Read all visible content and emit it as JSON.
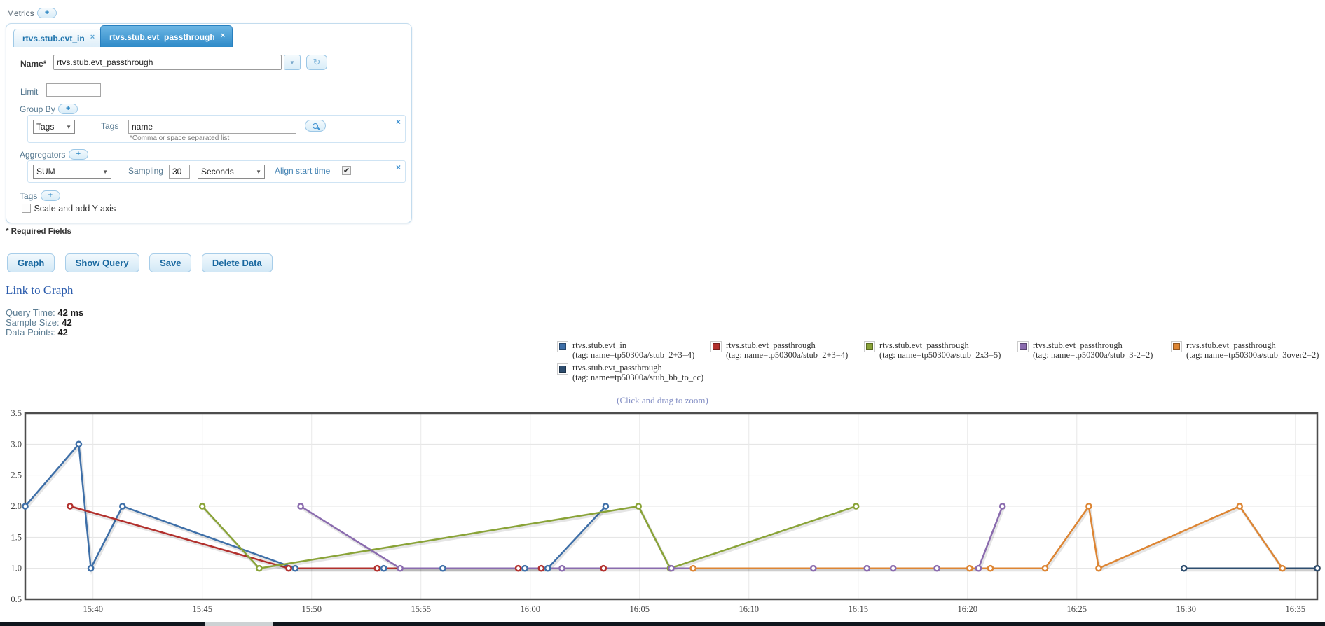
{
  "metrics_header": {
    "label": "Metrics",
    "add": "+"
  },
  "tabs": [
    {
      "label": "rtvs.stub.evt_in",
      "close": "×"
    },
    {
      "label": "rtvs.stub.evt_passthrough",
      "close": "×"
    }
  ],
  "form": {
    "name_label": "Name*",
    "name_value": "rtvs.stub.evt_passthrough",
    "limit_label": "Limit",
    "limit_value": "",
    "group_by": {
      "label": "Group By",
      "add": "+",
      "type_value": "Tags",
      "tags_label": "Tags",
      "tags_value": "name",
      "hint": "*Comma or space separated list",
      "close": "×"
    },
    "aggregators": {
      "label": "Aggregators",
      "add": "+",
      "selected": "SUM",
      "sampling_label": "Sampling",
      "sampling_value": "30",
      "unit_value": "Seconds",
      "align_label": "Align start time",
      "align_checked": "✔",
      "close": "×"
    },
    "tags_section": {
      "label": "Tags",
      "add": "+"
    },
    "scale_label": "Scale and add Y-axis",
    "required_note": "* Required Fields"
  },
  "buttons": [
    "Graph",
    "Show Query",
    "Save",
    "Delete Data"
  ],
  "link_to_graph": "Link to Graph",
  "stats": [
    {
      "label": "Query Time:",
      "value": "42 ms"
    },
    {
      "label": "Sample Size:",
      "value": "42"
    },
    {
      "label": "Data Points:",
      "value": "42"
    }
  ],
  "chart_hint": "(Click and drag to zoom)",
  "chart_data": {
    "type": "line",
    "xlim": [
      36.9,
      96.0
    ],
    "ylim": [
      0.5,
      3.5
    ],
    "x_ticks": [
      [
        40,
        "15:40"
      ],
      [
        45,
        "15:45"
      ],
      [
        50,
        "15:50"
      ],
      [
        55,
        "15:55"
      ],
      [
        60,
        "16:00"
      ],
      [
        65,
        "16:05"
      ],
      [
        70,
        "16:10"
      ],
      [
        75,
        "16:15"
      ],
      [
        80,
        "16:20"
      ],
      [
        85,
        "16:25"
      ],
      [
        90,
        "16:30"
      ],
      [
        95,
        "16:35"
      ]
    ],
    "y_ticks": [
      [
        0.5,
        "0.5"
      ],
      [
        1,
        "1.0"
      ],
      [
        1.5,
        "1.5"
      ],
      [
        2,
        "2.0"
      ],
      [
        2.5,
        "2.5"
      ],
      [
        3,
        "3.0"
      ],
      [
        3.5,
        "3.5"
      ]
    ],
    "grid": true,
    "legend_position": "above-chart",
    "series": [
      {
        "name": "rtvs.stub.evt_in",
        "tag": "(tag: name=tp50300a/stub_2+3=4)",
        "color": "#3e6fa8",
        "points": [
          [
            36.9,
            2
          ],
          [
            39.35,
            3
          ],
          [
            39.9,
            1
          ],
          [
            41.35,
            2
          ],
          [
            49.25,
            1
          ],
          [
            53.3,
            1
          ],
          [
            56.0,
            1
          ],
          [
            59.75,
            1
          ],
          [
            60.8,
            1
          ],
          [
            63.45,
            2
          ]
        ]
      },
      {
        "name": "rtvs.stub.evt_passthrough",
        "tag": "(tag: name=tp50300a/stub_2+3=4)",
        "color": "#b2302d",
        "points": [
          [
            38.95,
            2
          ],
          [
            48.95,
            1
          ],
          [
            53.0,
            1
          ],
          [
            59.45,
            1
          ],
          [
            60.5,
            1
          ],
          [
            63.35,
            1
          ]
        ]
      },
      {
        "name": "rtvs.stub.evt_passthrough",
        "tag": "(tag: name=tp50300a/stub_2x3=5)",
        "color": "#89a337",
        "points": [
          [
            45.0,
            2
          ],
          [
            47.6,
            1
          ],
          [
            64.95,
            2
          ],
          [
            66.4,
            1
          ],
          [
            74.9,
            2
          ]
        ]
      },
      {
        "name": "rtvs.stub.evt_passthrough",
        "tag": "(tag: name=tp50300a/stub_3-2=2)",
        "color": "#8a6bae",
        "points": [
          [
            49.5,
            2
          ],
          [
            54.05,
            1
          ],
          [
            61.45,
            1
          ],
          [
            66.45,
            1
          ],
          [
            72.95,
            1
          ],
          [
            75.4,
            1
          ],
          [
            76.6,
            1
          ],
          [
            78.6,
            1
          ],
          [
            80.5,
            1
          ],
          [
            81.6,
            2
          ]
        ]
      },
      {
        "name": "rtvs.stub.evt_passthrough",
        "tag": "(tag: name=tp50300a/stub_3over2=2)",
        "color": "#dd8533",
        "points": [
          [
            67.45,
            1
          ],
          [
            80.1,
            1
          ],
          [
            81.05,
            1
          ],
          [
            83.55,
            1
          ],
          [
            85.55,
            2
          ],
          [
            86.0,
            1
          ],
          [
            92.45,
            2
          ],
          [
            94.4,
            1
          ],
          [
            96.0,
            1
          ]
        ]
      },
      {
        "name": "rtvs.stub.evt_passthrough",
        "tag": "(tag: name=tp50300a/stub_bb_to_cc)",
        "color": "#2d4d6f",
        "points": [
          [
            89.9,
            1
          ],
          [
            96.0,
            1
          ]
        ]
      }
    ]
  }
}
